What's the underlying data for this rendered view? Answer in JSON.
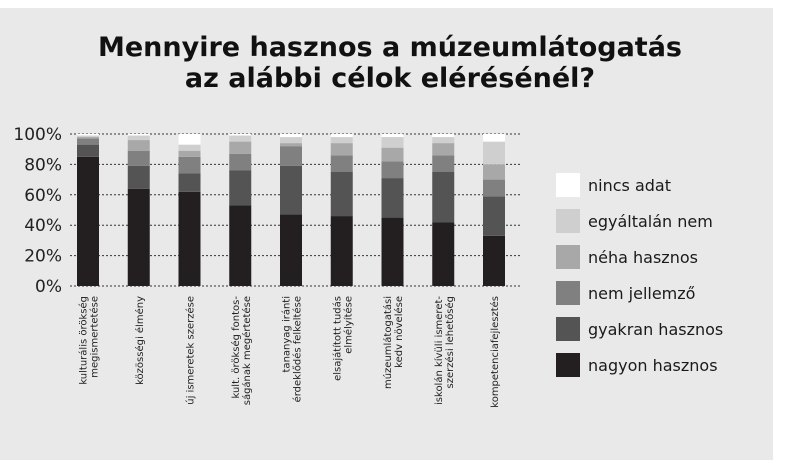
{
  "chart_data": {
    "type": "bar",
    "stacked": true,
    "title": "Mennyire hasznos a múzeumlátogatás az alábbi célok elérésénél?",
    "title_lines": [
      "Mennyire hasznos a múzeumlátogatás",
      "az alábbi célok elérésénél?"
    ],
    "ylim": [
      0,
      100
    ],
    "yticks": [
      "0%",
      "20%",
      "40%",
      "60%",
      "80%",
      "100%"
    ],
    "grid": "dotted horizontal",
    "legend_position": "right",
    "categories": [
      [
        "kulturális örökség",
        "megismertetése"
      ],
      [
        "közösségi élmény"
      ],
      [
        "új ismeretek szerzése"
      ],
      [
        "kult. örökség fontos-",
        "ságának megértetése"
      ],
      [
        "tananyag iránti",
        "érdeklődés felkeltése"
      ],
      [
        "elsajátított tudás",
        "elmélyítése"
      ],
      [
        "múzeumlátogatási",
        "kedv növelése"
      ],
      [
        "iskolán kívüli ismeret-",
        "szerzési lehetőség"
      ],
      [
        "kompetenciafejlesztés"
      ]
    ],
    "series": [
      {
        "name": "nagyon hasznos",
        "color": "#231f20",
        "values": [
          85,
          64,
          62,
          53,
          47,
          46,
          45,
          42,
          33
        ]
      },
      {
        "name": "gyakran hasznos",
        "color": "#545454",
        "values": [
          8,
          15,
          12,
          23,
          32,
          29,
          26,
          33,
          26
        ]
      },
      {
        "name": "nem jellemző",
        "color": "#808080",
        "values": [
          4,
          10,
          11,
          11,
          13,
          11,
          11,
          11,
          11
        ]
      },
      {
        "name": "néha hasznos",
        "color": "#a8a8a8",
        "values": [
          1,
          7,
          4,
          8,
          2,
          8,
          9,
          8,
          10
        ]
      },
      {
        "name": "egyáltalán nem",
        "color": "#cfcfcf",
        "values": [
          1,
          3,
          4,
          4,
          4,
          4,
          7,
          4,
          15
        ]
      },
      {
        "name": "nincs adat",
        "color": "#ffffff",
        "values": [
          1,
          1,
          7,
          1,
          2,
          2,
          2,
          2,
          5
        ]
      }
    ],
    "legend_order": [
      "nincs adat",
      "egyáltalán nem",
      "néha hasznos",
      "nem jellemző",
      "gyakran hasznos",
      "nagyon hasznos"
    ]
  }
}
